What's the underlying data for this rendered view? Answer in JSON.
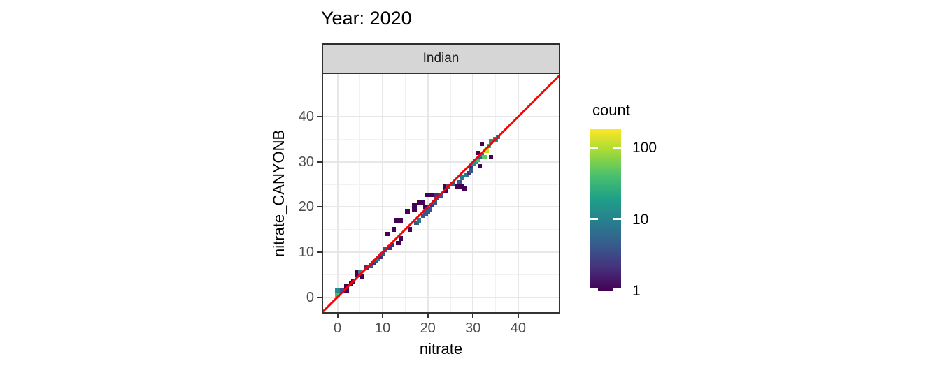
{
  "colors": {
    "identity_line": "#ff0000",
    "strip_fill": "#d6d6d6",
    "panel_border": "#333333",
    "grid_major": "#e7e7e7",
    "grid_minor": "#f2f2f2",
    "axis_text": "#4d4d4d",
    "viridis_stops": [
      "#440154",
      "#46327e",
      "#365c8d",
      "#277f8e",
      "#1fa187",
      "#4ac16d",
      "#a0da39",
      "#fde725"
    ]
  },
  "chart_data": {
    "type": "heatmap",
    "title": "Year: 2020",
    "facet_label": "Indian",
    "xlabel": "nitrate",
    "ylabel": "nitrate_CANYONB",
    "xlim": [
      -3.2,
      49.0
    ],
    "ylim": [
      -3.3,
      49.4
    ],
    "x_major_ticks": [
      0,
      10,
      20,
      30,
      40
    ],
    "y_major_ticks": [
      0,
      10,
      20,
      30,
      40
    ],
    "x_minor_ticks": [
      5,
      15,
      25,
      35,
      45
    ],
    "y_minor_ticks": [
      5,
      15,
      25,
      35,
      45
    ],
    "grid": true,
    "bin_width": 1,
    "identity_line": {
      "slope": 1,
      "intercept": 0
    },
    "color_scale": {
      "palette": "viridis",
      "transform": "log10",
      "domain": [
        1,
        180
      ],
      "legend_title": "count",
      "legend_ticks": [
        100,
        10,
        1
      ]
    },
    "tiles": [
      [
        0,
        0.5,
        40
      ],
      [
        0,
        1.5,
        12
      ],
      [
        1,
        1.5,
        4
      ],
      [
        2,
        1.5,
        1
      ],
      [
        2,
        2.5,
        1
      ],
      [
        3,
        3,
        1
      ],
      [
        3.5,
        3.5,
        1
      ],
      [
        5.5,
        4.5,
        1
      ],
      [
        4.5,
        5,
        1
      ],
      [
        4.5,
        5.5,
        1
      ],
      [
        5,
        5.5,
        10
      ],
      [
        6.5,
        6.5,
        2
      ],
      [
        7.5,
        7,
        4
      ],
      [
        8,
        7.5,
        2
      ],
      [
        8.5,
        8,
        4
      ],
      [
        9,
        8.5,
        10
      ],
      [
        9.5,
        9,
        2
      ],
      [
        10,
        9.5,
        4
      ],
      [
        10.5,
        10.5,
        4
      ],
      [
        11.5,
        11,
        2
      ],
      [
        12,
        11.5,
        2
      ],
      [
        13.5,
        12,
        1
      ],
      [
        14,
        13,
        1
      ],
      [
        11,
        14,
        1
      ],
      [
        12.5,
        15,
        1
      ],
      [
        16,
        15,
        1
      ],
      [
        13,
        17,
        1
      ],
      [
        14,
        17,
        1
      ],
      [
        15.5,
        19,
        1
      ],
      [
        17.5,
        16.5,
        4
      ],
      [
        18,
        17,
        8
      ],
      [
        19,
        18,
        4
      ],
      [
        19.5,
        18.5,
        4
      ],
      [
        20,
        19,
        4
      ],
      [
        20.5,
        19.5,
        4
      ],
      [
        17,
        19.5,
        1
      ],
      [
        17,
        20.5,
        1
      ],
      [
        19.5,
        20,
        1
      ],
      [
        18,
        21,
        1
      ],
      [
        19,
        21,
        1
      ],
      [
        21,
        20.5,
        2
      ],
      [
        21.5,
        21,
        4
      ],
      [
        22,
        22,
        4
      ],
      [
        23,
        22.5,
        4
      ],
      [
        20,
        22.7,
        1
      ],
      [
        21,
        22.7,
        1
      ],
      [
        22,
        22.7,
        2
      ],
      [
        24,
        23.5,
        1
      ],
      [
        24,
        24.5,
        1
      ],
      [
        24.5,
        24.5,
        4
      ],
      [
        25.5,
        25,
        4
      ],
      [
        26.5,
        24.5,
        1
      ],
      [
        27.5,
        24.5,
        1
      ],
      [
        28,
        24,
        1
      ],
      [
        27,
        25.5,
        4
      ],
      [
        27.5,
        26.5,
        8
      ],
      [
        28.5,
        27,
        8
      ],
      [
        29,
        27.5,
        2
      ],
      [
        29.5,
        28,
        4
      ],
      [
        29.5,
        29,
        2
      ],
      [
        30,
        29.5,
        12
      ],
      [
        30.5,
        30,
        15
      ],
      [
        31,
        30.5,
        35
      ],
      [
        31.5,
        31,
        5
      ],
      [
        31,
        32,
        1
      ],
      [
        31.5,
        29,
        1
      ],
      [
        32,
        31.5,
        10
      ],
      [
        32.5,
        31,
        50
      ],
      [
        33,
        32.5,
        120
      ],
      [
        33.5,
        33.5,
        30
      ],
      [
        32,
        34,
        1
      ],
      [
        34,
        31,
        1
      ],
      [
        34,
        34.5,
        15
      ],
      [
        35,
        35,
        12
      ],
      [
        35.5,
        35.5,
        10
      ]
    ]
  }
}
